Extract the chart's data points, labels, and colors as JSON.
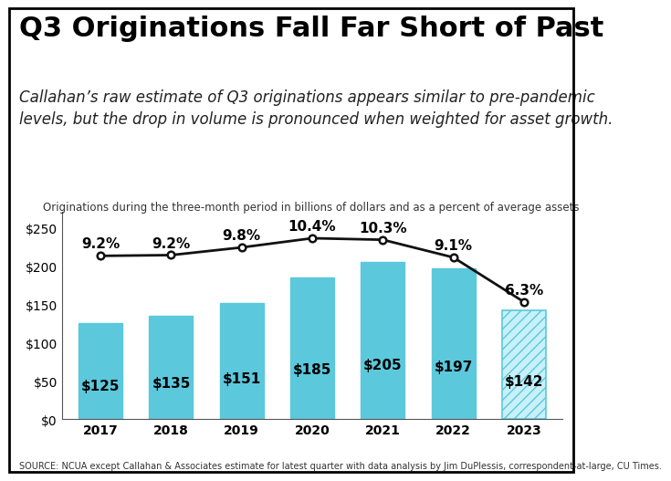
{
  "title": "Q3 Originations Fall Far Short of Past",
  "subtitle": "Callahan’s raw estimate of Q3 originations appears similar to pre-pandemic\nlevels, but the drop in volume is pronounced when weighted for asset growth.",
  "chart_label": "Originations during the three-month period in billions of dollars and as a percent of average assets",
  "categories": [
    "2017",
    "2018",
    "2019",
    "2020",
    "2021",
    "2022",
    "2023"
  ],
  "bar_values": [
    125,
    135,
    151,
    185,
    205,
    197,
    142
  ],
  "line_values": [
    213,
    214,
    224,
    236,
    234,
    211,
    153
  ],
  "pct_labels": [
    "9.2%",
    "9.2%",
    "9.8%",
    "10.4%",
    "10.3%",
    "9.1%",
    "6.3%"
  ],
  "bar_labels": [
    "$125",
    "$135",
    "$151",
    "$185",
    "$205",
    "$197",
    "$142"
  ],
  "bar_color": "#5BC8DC",
  "line_color": "#111111",
  "hatch_pattern": "///",
  "ylim": [
    0,
    270
  ],
  "yticks": [
    0,
    50,
    100,
    150,
    200,
    250
  ],
  "ytick_labels": [
    "$0",
    "$50",
    "$100",
    "$150",
    "$200",
    "$250"
  ],
  "source_text": "SOURCE: NCUA except Callahan & Associates estimate for latest quarter with data analysis by Jim DuPlessis, correspondent-at-large, CU Times.",
  "background_color": "#ffffff",
  "title_fontsize": 22,
  "subtitle_fontsize": 12,
  "chart_label_fontsize": 8.5,
  "bar_label_fontsize": 11,
  "pct_label_fontsize": 11,
  "source_fontsize": 7,
  "tick_fontsize": 10
}
